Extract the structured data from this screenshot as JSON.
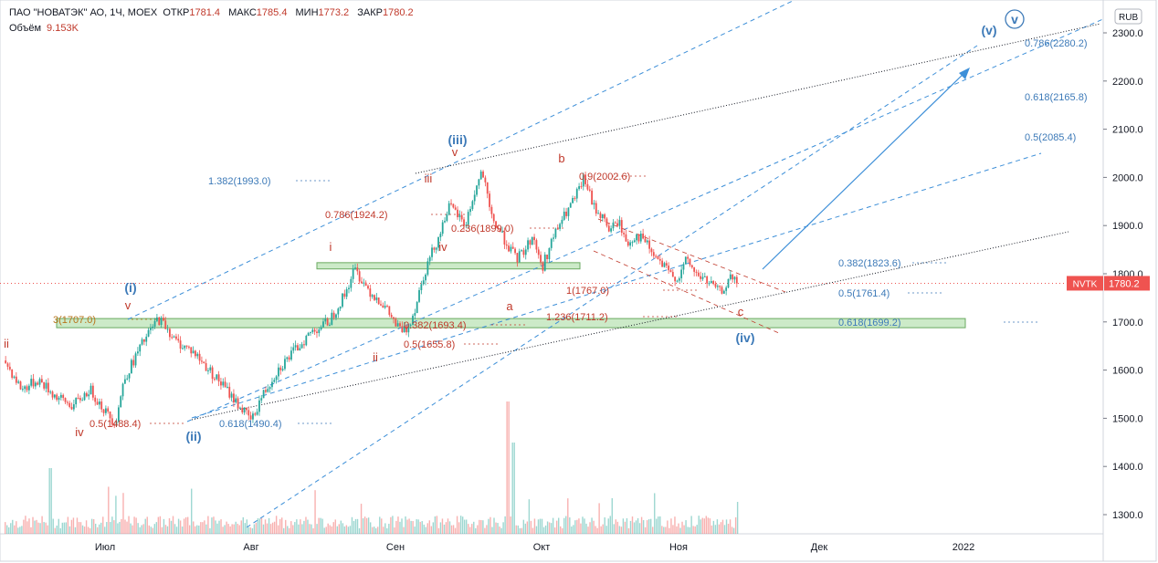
{
  "header": {
    "symbol": "ПАО \"НОВАТЭК\" АО, 1Ч, MOEX",
    "open_label": "ОТКР",
    "open_value": "1781.4",
    "high_label": "МАКС",
    "high_value": "1785.4",
    "low_label": "МИН",
    "low_value": "1773.2",
    "close_label": "ЗАКР",
    "close_value": "1780.2",
    "volume_label": "Объём",
    "volume_value": "9.153K"
  },
  "currency": "RUB",
  "ticker_tag": "NVTK",
  "last_price_tag": "1780.2",
  "colors": {
    "up": "#26a69a",
    "down": "#ef5350",
    "accent": "#2962ff",
    "wave_blue": "#3d7ab8",
    "wave_red": "#c0392b",
    "zone": "#b7e1b0"
  },
  "chart_data": {
    "type": "candlestick",
    "y_ticks": [
      "1300.0",
      "1400.0",
      "1500.0",
      "1600.0",
      "1700.0",
      "1800.0",
      "1900.0",
      "2000.0",
      "2100.0",
      "2200.0",
      "2300.0"
    ],
    "x_ticks": [
      "Июл",
      "Авг",
      "Сен",
      "Окт",
      "Ноя",
      "Дек",
      "2022"
    ],
    "ylim": [
      1265,
      2340
    ],
    "price_path": [
      [
        0,
        1620
      ],
      [
        4,
        1560
      ],
      [
        8,
        1580
      ],
      [
        12,
        1545
      ],
      [
        16,
        1525
      ],
      [
        20,
        1560
      ],
      [
        24,
        1510
      ],
      [
        26,
        1490
      ],
      [
        28,
        1580
      ],
      [
        32,
        1650
      ],
      [
        36,
        1707
      ],
      [
        38,
        1690
      ],
      [
        40,
        1660
      ],
      [
        44,
        1640
      ],
      [
        48,
        1600
      ],
      [
        52,
        1560
      ],
      [
        56,
        1515
      ],
      [
        58,
        1495
      ],
      [
        60,
        1540
      ],
      [
        64,
        1600
      ],
      [
        68,
        1640
      ],
      [
        72,
        1680
      ],
      [
        76,
        1700
      ],
      [
        80,
        1760
      ],
      [
        82,
        1810
      ],
      [
        84,
        1785
      ],
      [
        86,
        1760
      ],
      [
        88,
        1745
      ],
      [
        90,
        1720
      ],
      [
        92,
        1690
      ],
      [
        94,
        1680
      ],
      [
        96,
        1720
      ],
      [
        98,
        1790
      ],
      [
        100,
        1840
      ],
      [
        102,
        1880
      ],
      [
        104,
        1940
      ],
      [
        106,
        1925
      ],
      [
        108,
        1900
      ],
      [
        110,
        1960
      ],
      [
        112,
        2015
      ],
      [
        114,
        1920
      ],
      [
        116,
        1890
      ],
      [
        118,
        1860
      ],
      [
        120,
        1830
      ],
      [
        122,
        1850
      ],
      [
        124,
        1880
      ],
      [
        126,
        1810
      ],
      [
        128,
        1860
      ],
      [
        130,
        1900
      ],
      [
        132,
        1930
      ],
      [
        134,
        1960
      ],
      [
        136,
        2000
      ],
      [
        138,
        1940
      ],
      [
        140,
        1920
      ],
      [
        142,
        1890
      ],
      [
        144,
        1910
      ],
      [
        146,
        1860
      ],
      [
        148,
        1880
      ],
      [
        150,
        1870
      ],
      [
        152,
        1840
      ],
      [
        154,
        1820
      ],
      [
        156,
        1800
      ],
      [
        158,
        1790
      ],
      [
        160,
        1830
      ],
      [
        162,
        1800
      ],
      [
        164,
        1790
      ],
      [
        166,
        1775
      ],
      [
        168,
        1760
      ],
      [
        170,
        1790
      ],
      [
        172,
        1780
      ]
    ],
    "annotations": {
      "elliott": [
        {
          "label": "(i)",
          "wave": "blue"
        },
        {
          "label": "(ii)",
          "wave": "blue"
        },
        {
          "label": "(iii)",
          "wave": "blue"
        },
        {
          "label": "(iv)",
          "wave": "blue"
        },
        {
          "label": "(v)",
          "wave": "blue"
        },
        {
          "label": "v",
          "wave": "blue"
        },
        {
          "label": "ii",
          "wave": "red"
        },
        {
          "label": "iv",
          "wave": "red"
        },
        {
          "label": "v",
          "wave": "red"
        },
        {
          "label": "i",
          "wave": "red"
        },
        {
          "label": "ii",
          "wave": "red"
        },
        {
          "label": "iii",
          "wave": "red"
        },
        {
          "label": "iv",
          "wave": "red"
        },
        {
          "label": "v",
          "wave": "red"
        },
        {
          "label": "a",
          "wave": "red"
        },
        {
          "label": "b",
          "wave": "red"
        },
        {
          "label": "c",
          "wave": "red"
        }
      ],
      "fib_levels": [
        "0.786(2280.2)",
        "0.618(2165.8)",
        "0.5(2085.4)",
        "1.382(1993.0)",
        "0.9(2002.6)",
        "0.786(1924.2)",
        "0.236(1899.0)",
        "0.382(1823.6)",
        "1(1767.0)",
        "0.5(1761.4)",
        "1.236(1711.2)",
        "0.618(1699.2)",
        "3(1707.0)",
        "0.382(1693.4)",
        "0.5(1655.8)",
        "0.5(1488.4)",
        "0.618(1490.4)"
      ]
    }
  }
}
